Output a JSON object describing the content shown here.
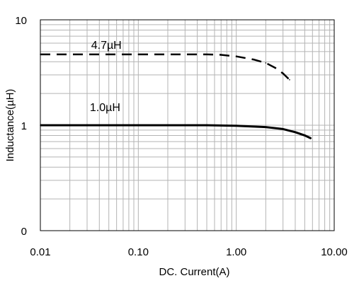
{
  "chart_data": {
    "type": "line",
    "xlabel": "DC. Current(A)",
    "ylabel": "Inductance(µH)",
    "x_scale": "log",
    "y_scale": "log",
    "xlim": [
      0.01,
      10
    ],
    "ylim": [
      0.1,
      10
    ],
    "x_ticks": [
      "0.01",
      "0.10",
      "1.00",
      "10.00"
    ],
    "y_ticks": [
      {
        "value": 10,
        "label": "10"
      },
      {
        "value": 1,
        "label": "1"
      },
      {
        "value": 0.1,
        "label": "0"
      }
    ],
    "grid": true,
    "annotations": [
      "4.7µH",
      "1.0µH"
    ],
    "series": [
      {
        "name": "4.7µH",
        "style": "dashed",
        "x": [
          0.01,
          0.1,
          0.5,
          0.7,
          1.0,
          1.5,
          2.0,
          2.5,
          3.0,
          3.5
        ],
        "y": [
          4.7,
          4.7,
          4.7,
          4.65,
          4.5,
          4.2,
          3.9,
          3.5,
          3.1,
          2.7
        ]
      },
      {
        "name": "1.0µH",
        "style": "solid",
        "x": [
          0.01,
          0.1,
          0.5,
          1.0,
          2.0,
          3.0,
          4.0,
          5.0,
          5.8
        ],
        "y": [
          1.0,
          1.0,
          1.0,
          0.99,
          0.96,
          0.92,
          0.86,
          0.8,
          0.75
        ]
      }
    ],
    "colors": {
      "line": "#000000",
      "grid": "#b4b4b4",
      "frame": "#000000"
    }
  }
}
